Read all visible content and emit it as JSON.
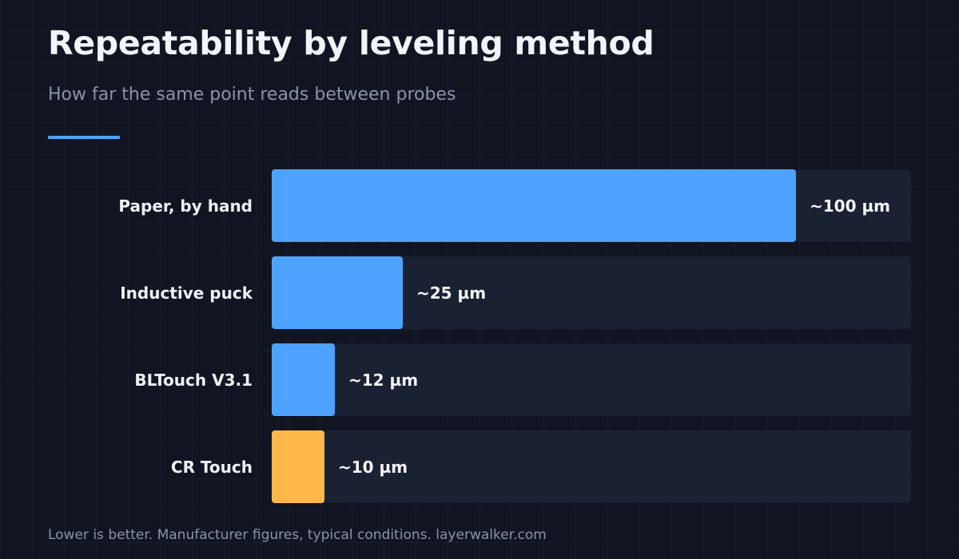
{
  "header": {
    "title": "Repeatability by leveling method",
    "subtitle": "How far the same point reads between probes"
  },
  "colors": {
    "background": "#111522",
    "track": "#1a2133",
    "bar_default": "#4da3ff",
    "bar_highlight": "#ffb74a",
    "accent_rule": "#4da3ff"
  },
  "chart_data": {
    "type": "bar",
    "orientation": "horizontal",
    "categories": [
      "Paper, by hand",
      "Inductive puck",
      "BLTouch V3.1",
      "CR Touch"
    ],
    "values": [
      100,
      25,
      12,
      10
    ],
    "value_labels": [
      "~100 µm",
      "~25 µm",
      "~12 µm",
      "~10 µm"
    ],
    "highlighted_category": "CR Touch",
    "xlim": [
      0,
      122
    ],
    "grid": false
  },
  "footnote": "Lower is better. Manufacturer figures, typical conditions. layerwalker.com"
}
